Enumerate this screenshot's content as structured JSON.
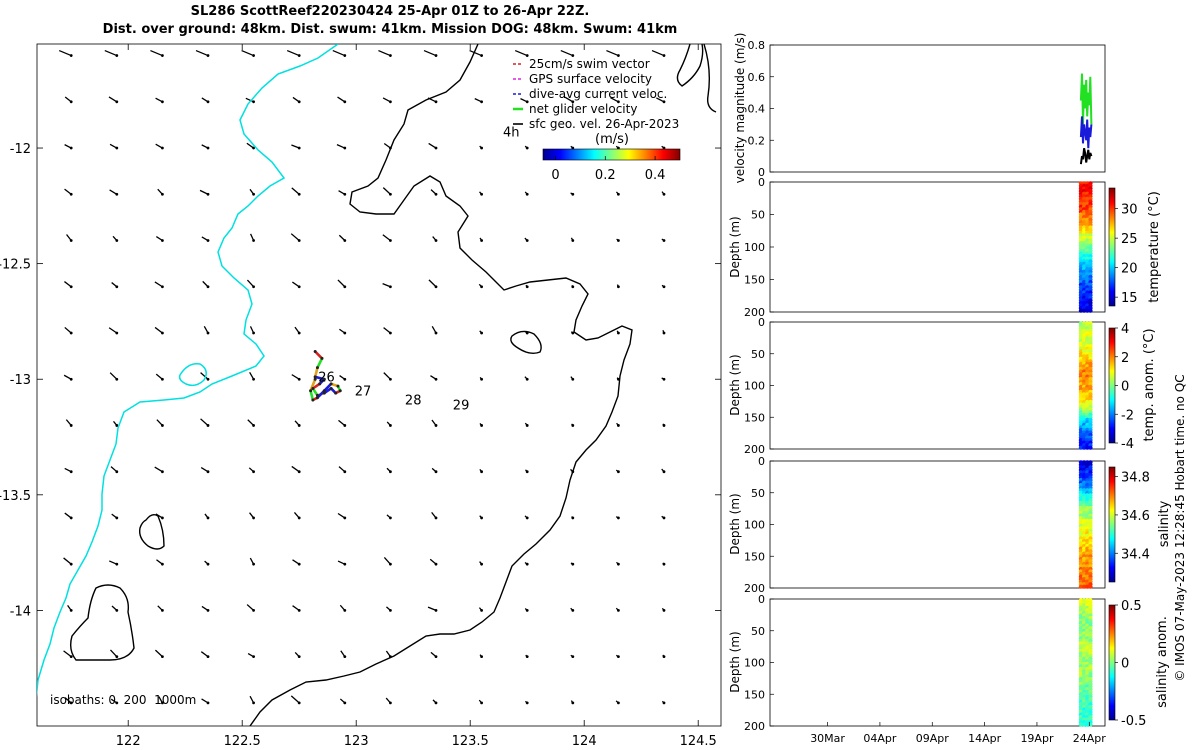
{
  "header": {
    "line1": "SL286 ScottReef220230424 25-Apr 01Z to 26-Apr 22Z.",
    "line2": "Dist. over ground: 48km. Dist. swum: 41km. Mission DOG: 48km. Swum: 41km"
  },
  "footer": {
    "timestamp": "© IMOS 07-May-2023 12:28:45 Hobart time. no QC"
  },
  "colors": {
    "bathy_shallow": "#00e0e0",
    "bathy_deep": "#000000",
    "swim_vector": "#d62020",
    "gps_velocity": "#e020e0",
    "dive_avg": "#1a1adb",
    "net_velocity": "#22e022",
    "geo_velocity": "#000000"
  },
  "chart_data": [
    {
      "type": "scatter",
      "id": "map",
      "xlim": [
        121.6,
        124.6
      ],
      "ylim": [
        -14.5,
        -11.55
      ],
      "xticks": [
        122,
        122.5,
        123,
        123.5,
        124,
        124.5
      ],
      "xtick_labels": [
        "122",
        "122.5",
        "123",
        "123.5",
        "124",
        "124.5"
      ],
      "yticks": [
        -12,
        -12.5,
        -13,
        -13.5,
        -14
      ],
      "ytick_labels": [
        "-12",
        "-12.5",
        "-13",
        "-13.5",
        "-14"
      ],
      "legend_items": [
        "25cm/s swim vector",
        "GPS surface velocity",
        "dive-avg current veloc.",
        "net glider velocity",
        "sfc geo. vel. 26-Apr-2023"
      ],
      "legend_placement": "top-right",
      "colorbar": {
        "label": "(m/s)",
        "ticks": [
          0,
          0.2,
          0.4
        ],
        "tick_labels": [
          "0",
          "0.2",
          "0.4"
        ],
        "range": [
          -0.05,
          0.5
        ]
      },
      "isobath_label": "isobaths: 0  200  1000m",
      "annotations": [
        {
          "text": "4h",
          "lon": 123.68,
          "lat": -11.95
        },
        {
          "text": "26",
          "lon": 122.87,
          "lat": -13.01
        },
        {
          "text": "27",
          "lon": 123.03,
          "lat": -13.07
        },
        {
          "text": "28",
          "lon": 123.25,
          "lat": -13.11
        },
        {
          "text": "29",
          "lon": 123.46,
          "lat": -13.13
        }
      ],
      "glider_track": {
        "lon": [
          122.82,
          122.85,
          122.83,
          122.82,
          122.86,
          122.84,
          122.81,
          122.83,
          122.86,
          122.89,
          122.91,
          122.93,
          122.92,
          122.89,
          122.86,
          122.83,
          122.81,
          122.8,
          122.82
        ],
        "lat": [
          -12.88,
          -12.91,
          -12.95,
          -12.99,
          -13.0,
          -13.02,
          -13.04,
          -13.07,
          -13.06,
          -13.04,
          -13.06,
          -13.05,
          -13.03,
          -13.02,
          -13.05,
          -13.08,
          -13.09,
          -13.05,
          -13.0
        ]
      }
    },
    {
      "type": "line",
      "id": "velocity",
      "ylabel": "velocity magnitude (m/s)",
      "ylim": [
        0,
        0.8
      ],
      "yticks": [
        0,
        0.2,
        0.4,
        0.6,
        0.8
      ],
      "ytick_labels": [
        "0",
        "0.2",
        "0.4",
        "0.6",
        "0.8"
      ],
      "xlim_days": [
        0,
        32
      ],
      "series": [
        {
          "values_day": [
            29.7,
            29.8,
            29.9,
            30.0,
            30.1,
            30.2,
            30.3,
            30.4,
            30.5,
            30.6,
            30.7
          ],
          "values": [
            0.45,
            0.62,
            0.3,
            0.55,
            0.4,
            0.58,
            0.35,
            0.5,
            0.42,
            0.6,
            0.3
          ]
        },
        {
          "values_day": [
            29.7,
            29.8,
            29.9,
            30.0,
            30.1,
            30.2,
            30.3,
            30.4,
            30.5,
            30.6,
            30.7
          ],
          "values": [
            0.22,
            0.35,
            0.18,
            0.3,
            0.25,
            0.2,
            0.33,
            0.15,
            0.28,
            0.22,
            0.3
          ]
        },
        {
          "values_day": [
            29.7,
            29.8,
            29.9,
            30.0,
            30.1,
            30.2,
            30.3,
            30.4,
            30.5,
            30.6,
            30.7
          ],
          "values": [
            0.05,
            0.1,
            0.08,
            0.15,
            0.12,
            0.06,
            0.1,
            0.14,
            0.08,
            0.12,
            0.1
          ]
        }
      ]
    },
    {
      "type": "heatmap",
      "id": "temperature",
      "ylabel": "Depth (m)",
      "cbar_label": "temperature (°C)",
      "ylim": [
        0,
        200
      ],
      "yticks": [
        0,
        50,
        100,
        150,
        200
      ],
      "ytick_labels": [
        "0",
        "50",
        "100",
        "150",
        "200"
      ],
      "cbar_ticks": [
        15,
        20,
        25,
        30
      ],
      "cbar_tick_labels": [
        "15",
        "20",
        "25",
        "30"
      ],
      "cbar_range": [
        13.5,
        33.5
      ],
      "profile": {
        "depth": [
          0,
          40,
          70,
          110,
          150,
          200
        ],
        "value": [
          31,
          30,
          27,
          22,
          18,
          15
        ]
      }
    },
    {
      "type": "heatmap",
      "id": "temp_anom",
      "ylabel": "Depth (m)",
      "cbar_label": "temp. anom. (°C)",
      "ylim": [
        0,
        200
      ],
      "yticks": [
        0,
        50,
        100,
        150,
        200
      ],
      "ytick_labels": [
        "0",
        "50",
        "100",
        "150",
        "200"
      ],
      "cbar_ticks": [
        -4,
        -2,
        0,
        2,
        4
      ],
      "cbar_tick_labels": [
        "-4",
        "-2",
        "0",
        "2",
        "4"
      ],
      "cbar_range": [
        -4,
        4
      ],
      "profile": {
        "depth": [
          0,
          40,
          80,
          120,
          160,
          200
        ],
        "value": [
          0.5,
          0.8,
          2.0,
          1.5,
          -1.5,
          -3
        ]
      }
    },
    {
      "type": "heatmap",
      "id": "salinity",
      "ylabel": "Depth (m)",
      "cbar_label": "salinity",
      "ylim": [
        0,
        200
      ],
      "yticks": [
        0,
        50,
        100,
        150,
        200
      ],
      "ytick_labels": [
        "0",
        "50",
        "100",
        "150",
        "200"
      ],
      "cbar_ticks": [
        34.4,
        34.6,
        34.8
      ],
      "cbar_tick_labels": [
        "34.4",
        "34.6",
        "34.8"
      ],
      "cbar_range": [
        34.25,
        34.85
      ],
      "profile": {
        "depth": [
          0,
          40,
          70,
          110,
          150,
          200
        ],
        "value": [
          34.3,
          34.4,
          34.55,
          34.62,
          34.68,
          34.72
        ]
      }
    },
    {
      "type": "heatmap",
      "id": "sal_anom",
      "ylabel": "Depth (m)",
      "cbar_label": "salinity anom.",
      "ylim": [
        0,
        200
      ],
      "yticks": [
        0,
        50,
        100,
        150,
        200
      ],
      "ytick_labels": [
        "0",
        "50",
        "100",
        "150",
        "200"
      ],
      "cbar_ticks": [
        -0.5,
        0,
        0.5
      ],
      "cbar_tick_labels": [
        "-0.5",
        "0",
        "0.5"
      ],
      "cbar_range": [
        -0.5,
        0.5
      ],
      "profile": {
        "depth": [
          0,
          40,
          80,
          120,
          160,
          200
        ],
        "value": [
          0.1,
          0.0,
          0.05,
          0.02,
          -0.05,
          -0.1
        ]
      }
    },
    {
      "type": "line",
      "id": "time_axis",
      "x_ticks_day": [
        5.5,
        10.5,
        15.5,
        20.5,
        25.5,
        30.5
      ],
      "x_tick_labels": [
        "30Mar",
        "04Apr",
        "09Apr",
        "14Apr",
        "19Apr",
        "24Apr"
      ]
    }
  ]
}
